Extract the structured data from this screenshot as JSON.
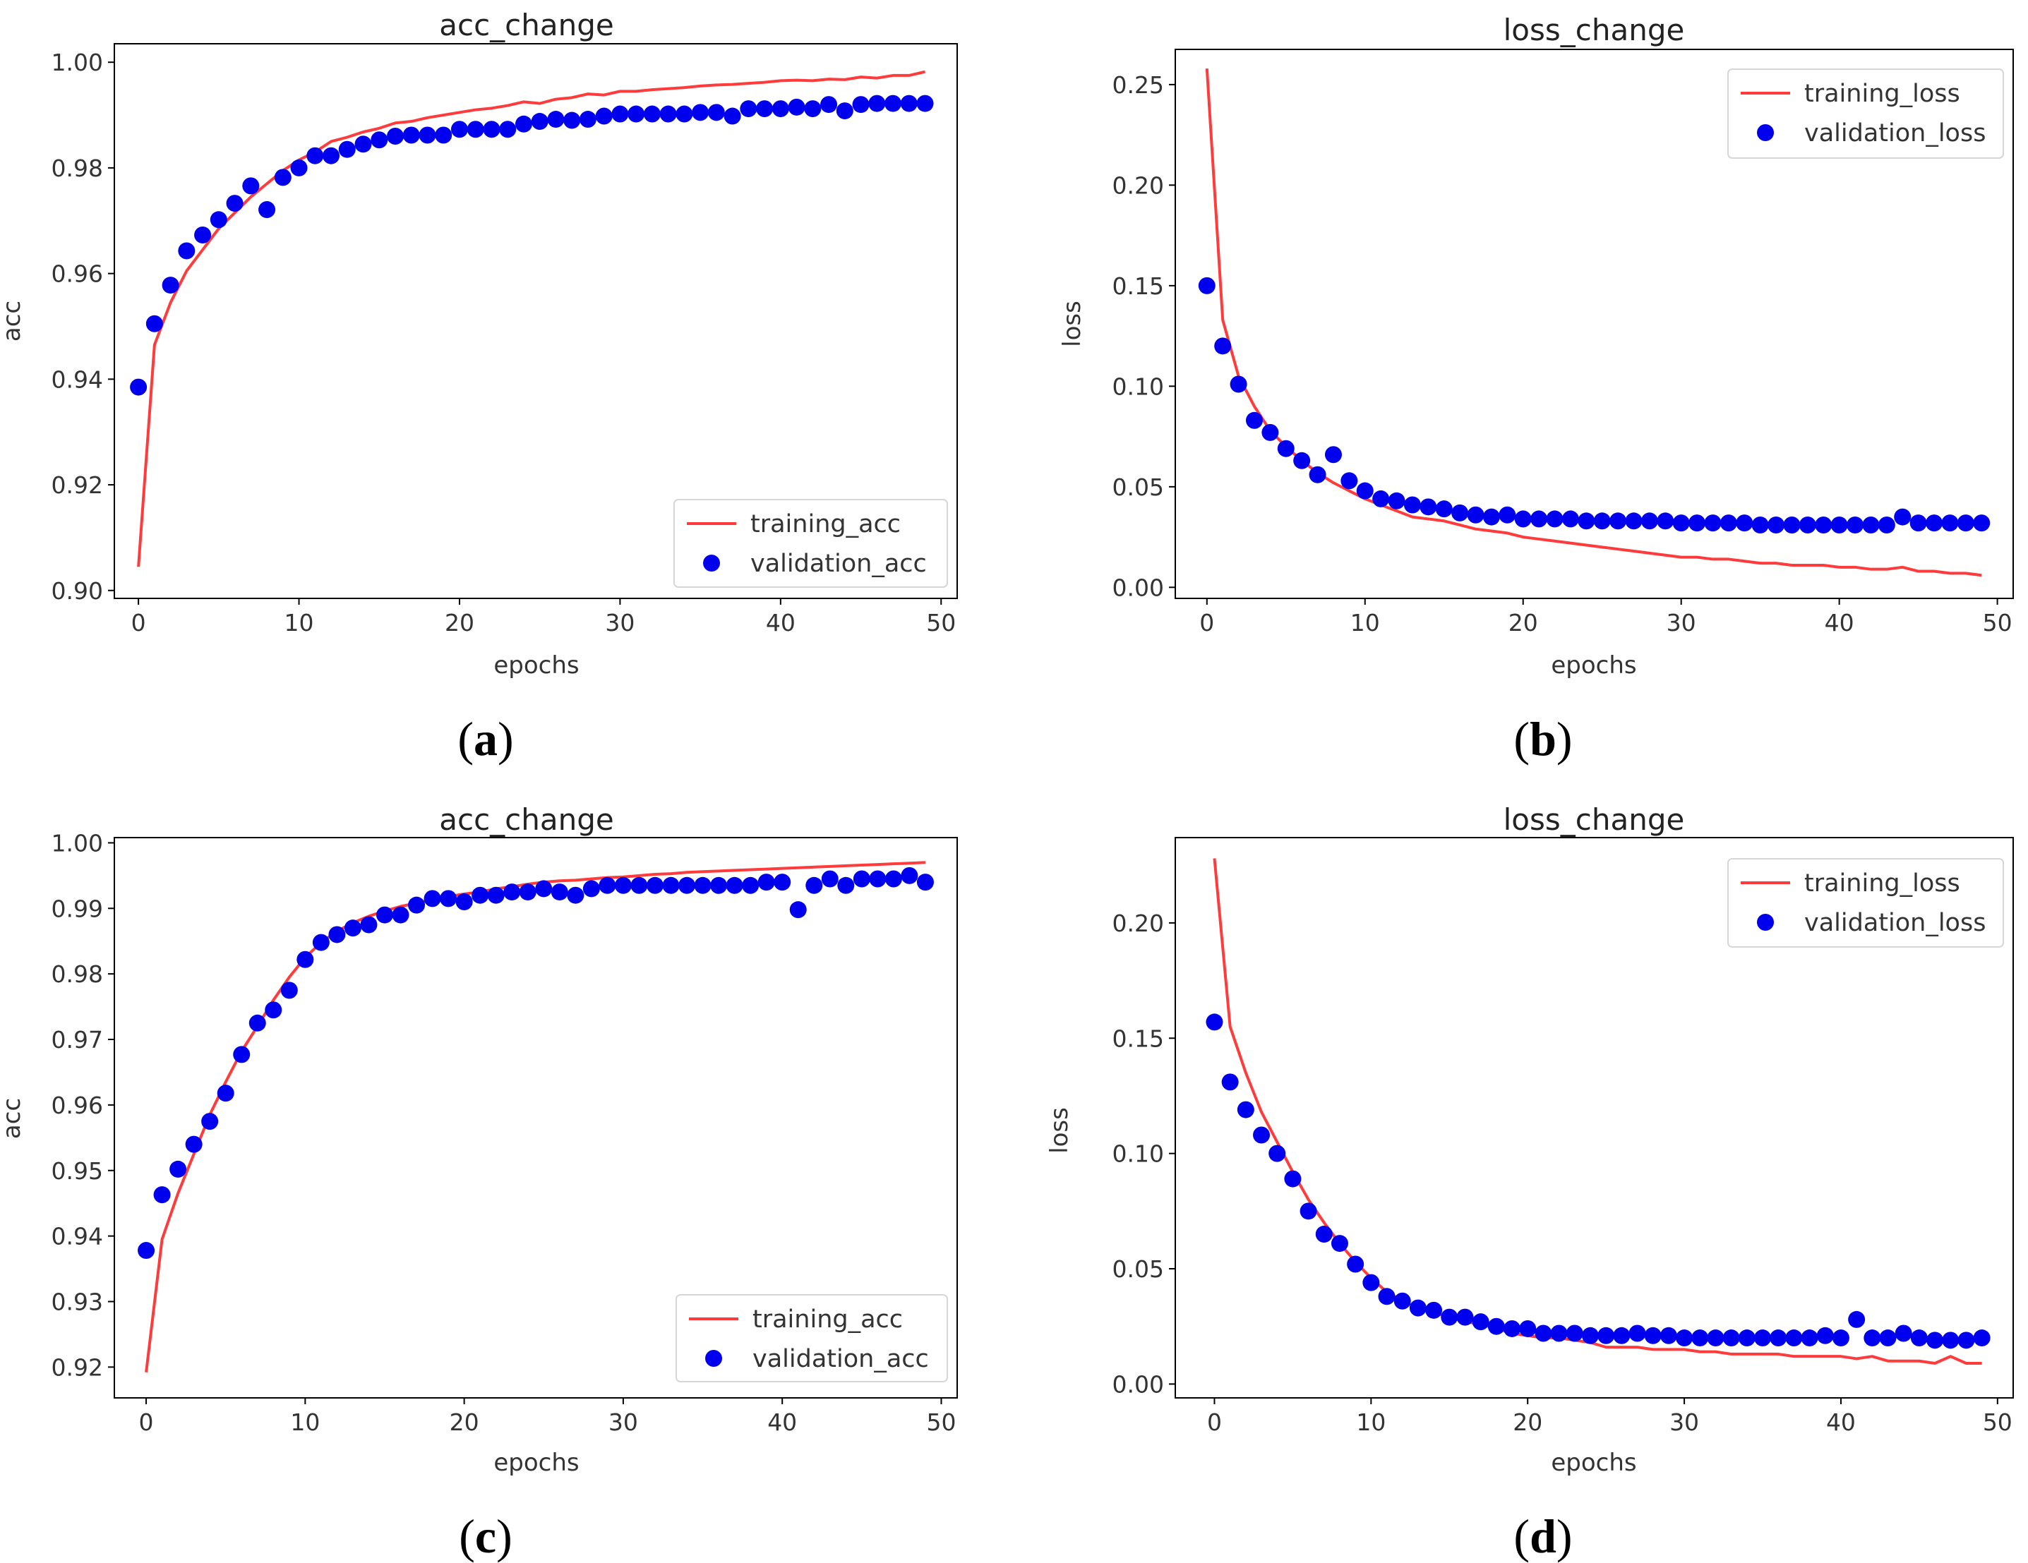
{
  "colors": {
    "training": "#ff3b3b",
    "validation": "#0000ee",
    "axis": "#000000"
  },
  "chart_data": [
    {
      "id": "a",
      "type": "line",
      "panel_label": "a",
      "title": "acc_change",
      "xlabel": "epochs",
      "ylabel": "acc",
      "xlim": [
        -1.5,
        51
      ],
      "ylim": [
        0.8985,
        1.0035
      ],
      "xticks": [
        0,
        10,
        20,
        30,
        40,
        50
      ],
      "xtick_labels": [
        "0",
        "10",
        "20",
        "30",
        "40",
        "50"
      ],
      "yticks": [
        0.9,
        0.92,
        0.94,
        0.96,
        0.98,
        1.0
      ],
      "ytick_labels": [
        "0.90",
        "0.92",
        "0.94",
        "0.96",
        "0.98",
        "1.00"
      ],
      "legend_position": "lower-right",
      "series": [
        {
          "name": "training_acc",
          "style": "line",
          "values": [
            0.9045,
            0.9465,
            0.9545,
            0.9605,
            0.9645,
            0.9685,
            0.9715,
            0.9745,
            0.977,
            0.9795,
            0.9815,
            0.983,
            0.985,
            0.9858,
            0.9868,
            0.9875,
            0.9885,
            0.9888,
            0.9895,
            0.99,
            0.9905,
            0.991,
            0.9913,
            0.9918,
            0.9925,
            0.9922,
            0.993,
            0.9933,
            0.994,
            0.9938,
            0.9945,
            0.9945,
            0.9948,
            0.995,
            0.9952,
            0.9955,
            0.9957,
            0.9958,
            0.996,
            0.9962,
            0.9965,
            0.9966,
            0.9965,
            0.9968,
            0.9967,
            0.9972,
            0.997,
            0.9975,
            0.9975,
            0.9982
          ]
        },
        {
          "name": "validation_acc",
          "style": "markers",
          "values": [
            0.9385,
            0.9505,
            0.9578,
            0.9643,
            0.9673,
            0.9702,
            0.9733,
            0.9766,
            0.9721,
            0.9782,
            0.98,
            0.9823,
            0.9823,
            0.9835,
            0.9845,
            0.9853,
            0.986,
            0.9862,
            0.9862,
            0.9862,
            0.9873,
            0.9873,
            0.9873,
            0.9873,
            0.9883,
            0.9888,
            0.9892,
            0.989,
            0.9892,
            0.9898,
            0.9902,
            0.9902,
            0.9902,
            0.9902,
            0.9902,
            0.9905,
            0.9905,
            0.9898,
            0.9912,
            0.9912,
            0.9912,
            0.9915,
            0.9912,
            0.992,
            0.9908,
            0.992,
            0.9922,
            0.9922,
            0.9922,
            0.9922
          ]
        }
      ]
    },
    {
      "id": "b",
      "type": "line",
      "panel_label": "b",
      "title": "loss_change",
      "xlabel": "epochs",
      "ylabel": "loss",
      "xlim": [
        -2,
        51
      ],
      "ylim": [
        -0.0055,
        0.2675
      ],
      "xticks": [
        0,
        10,
        20,
        30,
        40,
        50
      ],
      "xtick_labels": [
        "0",
        "10",
        "20",
        "30",
        "40",
        "50"
      ],
      "yticks": [
        0.0,
        0.05,
        0.1,
        0.15,
        0.2,
        0.25
      ],
      "ytick_labels": [
        "0.00",
        "0.05",
        "0.10",
        "0.15",
        "0.20",
        "0.25"
      ],
      "legend_position": "upper-right",
      "series": [
        {
          "name": "training_loss",
          "style": "line",
          "values": [
            0.258,
            0.133,
            0.105,
            0.09,
            0.078,
            0.07,
            0.063,
            0.057,
            0.052,
            0.048,
            0.044,
            0.041,
            0.038,
            0.035,
            0.034,
            0.033,
            0.031,
            0.029,
            0.028,
            0.027,
            0.025,
            0.024,
            0.023,
            0.022,
            0.021,
            0.02,
            0.019,
            0.018,
            0.017,
            0.016,
            0.015,
            0.015,
            0.014,
            0.014,
            0.013,
            0.012,
            0.012,
            0.011,
            0.011,
            0.011,
            0.01,
            0.01,
            0.009,
            0.009,
            0.01,
            0.008,
            0.008,
            0.007,
            0.007,
            0.006
          ]
        },
        {
          "name": "validation_loss",
          "style": "markers",
          "values": [
            0.15,
            0.12,
            0.101,
            0.083,
            0.077,
            0.069,
            0.063,
            0.056,
            0.066,
            0.053,
            0.048,
            0.044,
            0.043,
            0.041,
            0.04,
            0.039,
            0.037,
            0.036,
            0.035,
            0.036,
            0.034,
            0.034,
            0.034,
            0.034,
            0.033,
            0.033,
            0.033,
            0.033,
            0.033,
            0.033,
            0.032,
            0.032,
            0.032,
            0.032,
            0.032,
            0.031,
            0.031,
            0.031,
            0.031,
            0.031,
            0.031,
            0.031,
            0.031,
            0.031,
            0.035,
            0.032,
            0.032,
            0.032,
            0.032,
            0.032
          ]
        }
      ]
    },
    {
      "id": "c",
      "type": "line",
      "panel_label": "c",
      "title": "acc_change",
      "xlabel": "epochs",
      "ylabel": "acc",
      "xlim": [
        -2,
        51
      ],
      "ylim": [
        0.9153,
        1.0008
      ],
      "xticks": [
        0,
        10,
        20,
        30,
        40,
        50
      ],
      "xtick_labels": [
        "0",
        "10",
        "20",
        "30",
        "40",
        "50"
      ],
      "yticks": [
        0.92,
        0.93,
        0.94,
        0.95,
        0.96,
        0.97,
        0.98,
        0.99,
        1.0
      ],
      "ytick_labels": [
        "0.92",
        "0.93",
        "0.94",
        "0.95",
        "0.96",
        "0.97",
        "0.98",
        "0.99",
        "1.00"
      ],
      "legend_position": "lower-right",
      "series": [
        {
          "name": "training_acc",
          "style": "line",
          "values": [
            0.9192,
            0.9395,
            0.9465,
            0.9525,
            0.9585,
            0.9635,
            0.9682,
            0.972,
            0.976,
            0.9795,
            0.9825,
            0.9848,
            0.9865,
            0.9878,
            0.9888,
            0.9896,
            0.9903,
            0.9908,
            0.9913,
            0.9918,
            0.9922,
            0.9925,
            0.993,
            0.9933,
            0.9937,
            0.994,
            0.9942,
            0.9943,
            0.9945,
            0.9947,
            0.9948,
            0.995,
            0.9952,
            0.9953,
            0.9955,
            0.9956,
            0.9957,
            0.9958,
            0.9959,
            0.996,
            0.9961,
            0.9962,
            0.9963,
            0.9964,
            0.9965,
            0.9966,
            0.9967,
            0.9968,
            0.9969,
            0.997
          ]
        },
        {
          "name": "validation_acc",
          "style": "markers",
          "values": [
            0.9378,
            0.9463,
            0.9502,
            0.954,
            0.9575,
            0.9618,
            0.9677,
            0.9725,
            0.9745,
            0.9775,
            0.9822,
            0.9848,
            0.986,
            0.987,
            0.9875,
            0.989,
            0.989,
            0.9905,
            0.9915,
            0.9915,
            0.991,
            0.992,
            0.992,
            0.9925,
            0.9925,
            0.993,
            0.9925,
            0.992,
            0.993,
            0.9935,
            0.9935,
            0.9935,
            0.9935,
            0.9935,
            0.9935,
            0.9935,
            0.9935,
            0.9935,
            0.9935,
            0.994,
            0.994,
            0.9898,
            0.9935,
            0.9945,
            0.9935,
            0.9945,
            0.9945,
            0.9945,
            0.995,
            0.994
          ]
        }
      ]
    },
    {
      "id": "d",
      "type": "line",
      "panel_label": "d",
      "title": "loss_change",
      "xlabel": "epochs",
      "ylabel": "loss",
      "xlim": [
        -2.5,
        51
      ],
      "ylim": [
        -0.006,
        0.237
      ],
      "xticks": [
        0,
        10,
        20,
        30,
        40,
        50
      ],
      "xtick_labels": [
        "0",
        "10",
        "20",
        "30",
        "40",
        "50"
      ],
      "yticks": [
        0.0,
        0.05,
        0.1,
        0.15,
        0.2
      ],
      "ytick_labels": [
        "0.00",
        "0.05",
        "0.10",
        "0.15",
        "0.20"
      ],
      "legend_position": "upper-right",
      "series": [
        {
          "name": "training_loss",
          "style": "line",
          "values": [
            0.228,
            0.155,
            0.135,
            0.118,
            0.105,
            0.092,
            0.08,
            0.07,
            0.061,
            0.053,
            0.046,
            0.04,
            0.036,
            0.033,
            0.031,
            0.029,
            0.027,
            0.026,
            0.024,
            0.022,
            0.021,
            0.02,
            0.02,
            0.019,
            0.018,
            0.016,
            0.016,
            0.016,
            0.015,
            0.015,
            0.015,
            0.014,
            0.014,
            0.013,
            0.013,
            0.013,
            0.013,
            0.012,
            0.012,
            0.012,
            0.012,
            0.011,
            0.012,
            0.01,
            0.01,
            0.01,
            0.009,
            0.012,
            0.009,
            0.009
          ]
        },
        {
          "name": "validation_loss",
          "style": "markers",
          "values": [
            0.157,
            0.131,
            0.119,
            0.108,
            0.1,
            0.089,
            0.075,
            0.065,
            0.061,
            0.052,
            0.044,
            0.038,
            0.036,
            0.033,
            0.032,
            0.029,
            0.029,
            0.027,
            0.025,
            0.024,
            0.024,
            0.022,
            0.022,
            0.022,
            0.021,
            0.021,
            0.021,
            0.022,
            0.021,
            0.021,
            0.02,
            0.02,
            0.02,
            0.02,
            0.02,
            0.02,
            0.02,
            0.02,
            0.02,
            0.021,
            0.02,
            0.028,
            0.02,
            0.02,
            0.022,
            0.02,
            0.019,
            0.019,
            0.019,
            0.02
          ]
        }
      ]
    }
  ]
}
